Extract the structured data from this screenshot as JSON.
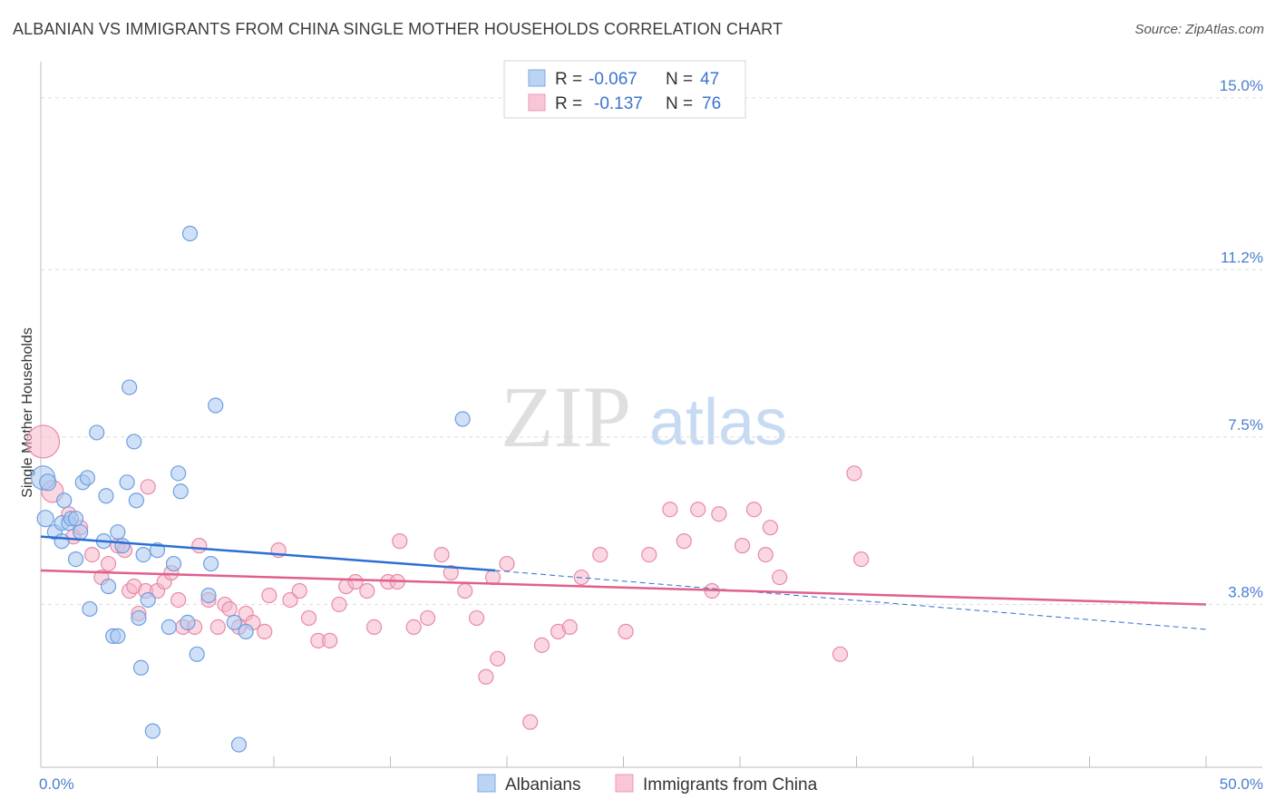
{
  "title": "ALBANIAN VS IMMIGRANTS FROM CHINA SINGLE MOTHER HOUSEHOLDS CORRELATION CHART",
  "source": "Source: ZipAtlas.com",
  "watermark": {
    "zip": "ZIP",
    "atlas": "atlas"
  },
  "colors": {
    "blue_fill": "#a9c8f0",
    "blue_stroke": "#6d9ee0",
    "blue_line": "#2b6fd4",
    "pink_fill": "#f5b6c9",
    "pink_stroke": "#e88aa8",
    "pink_line": "#e0608d",
    "axis_text": "#4a7fcf",
    "grid": "#dddddd"
  },
  "legend": {
    "rows": [
      {
        "r_label": "R =",
        "r_value": "-0.067",
        "n_label": "N =",
        "n_value": "47"
      },
      {
        "r_label": "R =",
        "r_value": "-0.137",
        "n_label": "N =",
        "n_value": "76"
      }
    ]
  },
  "chart_data": {
    "type": "scatter",
    "title": "ALBANIAN VS IMMIGRANTS FROM CHINA SINGLE MOTHER HOUSEHOLDS CORRELATION CHART",
    "xlabel": "",
    "ylabel": "Single Mother Households",
    "xlim": [
      0,
      50
    ],
    "ylim": [
      0.2,
      15.8
    ],
    "x_tick_labels": [
      "0.0%",
      "50.0%"
    ],
    "y_ticks": [
      3.8,
      7.5,
      11.2,
      15.0
    ],
    "y_tick_labels": [
      "3.8%",
      "7.5%",
      "11.2%",
      "15.0%"
    ],
    "grid": true,
    "series": [
      {
        "name": "Albanians",
        "color": "blue",
        "r": -0.067,
        "n": 47,
        "trend": {
          "x0": 0,
          "y0": 5.3,
          "x1": 19.5,
          "y1": 4.55,
          "dash_x1": 50,
          "dash_y1": 3.25
        },
        "points": [
          [
            0.1,
            6.6,
            13
          ],
          [
            0.2,
            5.7,
            9
          ],
          [
            0.3,
            6.5,
            9
          ],
          [
            0.6,
            5.4,
            8
          ],
          [
            0.9,
            5.6,
            8
          ],
          [
            0.9,
            5.2,
            8
          ],
          [
            1.0,
            6.1,
            8
          ],
          [
            1.2,
            5.6,
            8
          ],
          [
            1.3,
            5.7,
            8
          ],
          [
            1.5,
            4.8,
            8
          ],
          [
            1.7,
            5.4,
            8
          ],
          [
            1.8,
            6.5,
            8
          ],
          [
            2.0,
            6.6,
            8
          ],
          [
            2.1,
            3.7,
            8
          ],
          [
            2.4,
            7.6,
            8
          ],
          [
            2.7,
            5.2,
            8
          ],
          [
            2.8,
            6.2,
            8
          ],
          [
            2.9,
            4.2,
            8
          ],
          [
            3.1,
            3.1,
            8
          ],
          [
            3.3,
            3.1,
            8
          ],
          [
            3.3,
            5.4,
            8
          ],
          [
            3.5,
            5.1,
            8
          ],
          [
            3.7,
            6.5,
            8
          ],
          [
            3.8,
            8.6,
            8
          ],
          [
            4.0,
            7.4,
            8
          ],
          [
            4.1,
            6.1,
            8
          ],
          [
            4.2,
            3.5,
            8
          ],
          [
            4.3,
            2.4,
            8
          ],
          [
            4.4,
            4.9,
            8
          ],
          [
            4.6,
            3.9,
            8
          ],
          [
            4.8,
            1.0,
            8
          ],
          [
            5.0,
            5.0,
            8
          ],
          [
            5.5,
            3.3,
            8
          ],
          [
            5.7,
            4.7,
            8
          ],
          [
            5.9,
            6.7,
            8
          ],
          [
            6.0,
            6.3,
            8
          ],
          [
            6.3,
            3.4,
            8
          ],
          [
            6.4,
            12.0,
            8
          ],
          [
            6.7,
            2.7,
            8
          ],
          [
            7.2,
            4.0,
            8
          ],
          [
            7.3,
            4.7,
            8
          ],
          [
            7.5,
            8.2,
            8
          ],
          [
            8.3,
            3.4,
            8
          ],
          [
            8.5,
            0.7,
            8
          ],
          [
            8.8,
            3.2,
            8
          ],
          [
            18.1,
            7.9,
            8
          ],
          [
            1.5,
            5.7,
            8
          ]
        ]
      },
      {
        "name": "Immigrants from China",
        "color": "pink",
        "r": -0.137,
        "n": 76,
        "trend": {
          "x0": 0,
          "y0": 4.55,
          "x1": 50,
          "y1": 3.8
        },
        "points": [
          [
            0.1,
            7.4,
            18
          ],
          [
            0.5,
            6.3,
            12
          ],
          [
            1.2,
            5.8,
            8
          ],
          [
            1.4,
            5.3,
            8
          ],
          [
            1.7,
            5.5,
            8
          ],
          [
            2.2,
            4.9,
            8
          ],
          [
            2.6,
            4.4,
            8
          ],
          [
            2.9,
            4.7,
            8
          ],
          [
            3.3,
            5.1,
            8
          ],
          [
            3.6,
            5.0,
            8
          ],
          [
            3.8,
            4.1,
            8
          ],
          [
            4.0,
            4.2,
            8
          ],
          [
            4.2,
            3.6,
            8
          ],
          [
            4.5,
            4.1,
            8
          ],
          [
            4.6,
            6.4,
            8
          ],
          [
            5.0,
            4.1,
            8
          ],
          [
            5.3,
            4.3,
            8
          ],
          [
            5.6,
            4.5,
            8
          ],
          [
            5.9,
            3.9,
            8
          ],
          [
            6.1,
            3.3,
            8
          ],
          [
            6.6,
            3.3,
            8
          ],
          [
            6.8,
            5.1,
            8
          ],
          [
            7.2,
            3.9,
            8
          ],
          [
            7.6,
            3.3,
            8
          ],
          [
            7.9,
            3.8,
            8
          ],
          [
            8.1,
            3.7,
            8
          ],
          [
            8.5,
            3.3,
            8
          ],
          [
            8.8,
            3.6,
            8
          ],
          [
            9.1,
            3.4,
            8
          ],
          [
            9.6,
            3.2,
            8
          ],
          [
            9.8,
            4.0,
            8
          ],
          [
            10.2,
            5.0,
            8
          ],
          [
            10.7,
            3.9,
            8
          ],
          [
            11.1,
            4.1,
            8
          ],
          [
            11.5,
            3.5,
            8
          ],
          [
            11.9,
            3.0,
            8
          ],
          [
            12.4,
            3.0,
            8
          ],
          [
            12.8,
            3.8,
            8
          ],
          [
            13.1,
            4.2,
            8
          ],
          [
            13.5,
            4.3,
            8
          ],
          [
            14.0,
            4.1,
            8
          ],
          [
            14.3,
            3.3,
            8
          ],
          [
            14.9,
            4.3,
            8
          ],
          [
            15.3,
            4.3,
            8
          ],
          [
            15.4,
            5.2,
            8
          ],
          [
            16.0,
            3.3,
            8
          ],
          [
            16.6,
            3.5,
            8
          ],
          [
            17.2,
            4.9,
            8
          ],
          [
            17.6,
            4.5,
            8
          ],
          [
            18.2,
            4.1,
            8
          ],
          [
            18.7,
            3.5,
            8
          ],
          [
            19.1,
            2.2,
            8
          ],
          [
            19.4,
            4.4,
            8
          ],
          [
            19.6,
            2.6,
            8
          ],
          [
            20.0,
            4.7,
            8
          ],
          [
            21.0,
            1.2,
            8
          ],
          [
            21.5,
            2.9,
            8
          ],
          [
            22.2,
            3.2,
            8
          ],
          [
            22.7,
            3.3,
            8
          ],
          [
            23.2,
            4.4,
            8
          ],
          [
            24.0,
            4.9,
            8
          ],
          [
            25.1,
            3.2,
            8
          ],
          [
            26.1,
            4.9,
            8
          ],
          [
            27.0,
            5.9,
            8
          ],
          [
            27.6,
            5.2,
            8
          ],
          [
            28.2,
            5.9,
            8
          ],
          [
            28.8,
            4.1,
            8
          ],
          [
            29.1,
            5.8,
            8
          ],
          [
            30.1,
            5.1,
            8
          ],
          [
            30.6,
            5.9,
            8
          ],
          [
            31.1,
            4.9,
            8
          ],
          [
            31.3,
            5.5,
            8
          ],
          [
            31.7,
            4.4,
            8
          ],
          [
            34.3,
            2.7,
            8
          ],
          [
            34.9,
            6.7,
            8
          ],
          [
            35.2,
            4.8,
            8
          ]
        ]
      }
    ]
  },
  "bottom_legend": {
    "items": [
      {
        "label": "Albanians"
      },
      {
        "label": "Immigrants from China"
      }
    ]
  }
}
